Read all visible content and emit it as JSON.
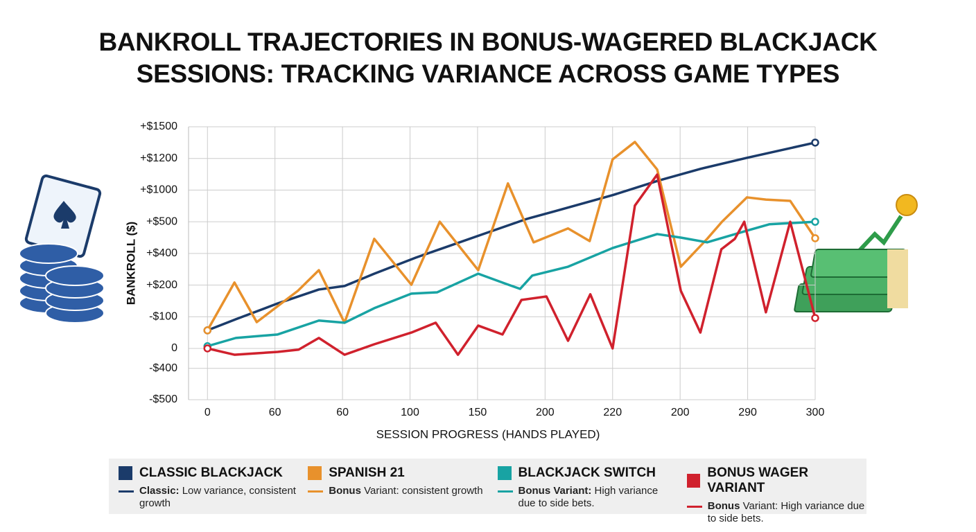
{
  "chart_data": {
    "type": "line",
    "title": "BANKROLL TRAJECTORIES IN BONUS-WAGERED BLACKJACK SESSIONS: TRACKING VARIANCE ACROSS GAME TYPES",
    "ylabel": "BANKROLL ($)",
    "xlabel": "SESSION PROGRESS (HANDS PLAYED)",
    "xlim": [
      -0.28,
      9
    ],
    "ylim": [
      -1.62,
      7
    ],
    "grid": true,
    "xticks": [
      0,
      {
        "value": 1,
        "label": "60"
      },
      {
        "value": 2,
        "label": "60"
      },
      {
        "value": 3,
        "label": "100"
      },
      {
        "value": 4,
        "label": "150"
      },
      {
        "value": 5,
        "label": "200"
      },
      {
        "value": 6,
        "label": "220"
      },
      {
        "value": 7,
        "label": "200"
      },
      {
        "value": 8,
        "label": "290"
      },
      {
        "value": 9,
        "label": "300"
      }
    ],
    "yticks": [
      {
        "value": -1.62,
        "label": "-$500"
      },
      {
        "value": -0.63,
        "label": "-$400"
      },
      0,
      {
        "value": 1,
        "label": "-$100"
      },
      {
        "value": 2,
        "label": "+$200"
      },
      {
        "value": 3,
        "label": "+$400"
      },
      {
        "value": 4,
        "label": "+$500"
      },
      {
        "value": 5,
        "label": "+$1000"
      },
      {
        "value": 6,
        "label": "+$1200"
      },
      {
        "value": 7,
        "label": "+$1500"
      }
    ],
    "series": [
      {
        "name": "CLASSIC BLACKJACK",
        "color": "#1b3b6a",
        "desc_bold": "Classic:",
        "desc": "Low variance, consistent growth",
        "x": [
          0,
          0.42,
          1.04,
          1.65,
          2.03,
          2.47,
          3.09,
          4.11,
          4.73,
          5.14,
          6.0,
          6.68,
          7.3,
          7.99,
          9.0
        ],
        "values": [
          0.57,
          0.92,
          1.42,
          1.86,
          1.97,
          2.36,
          2.87,
          3.63,
          4.09,
          4.33,
          4.84,
          5.3,
          5.67,
          6.02,
          6.5
        ]
      },
      {
        "name": "SPANISH 21",
        "color": "#e8912c",
        "desc_bold": "Bonus",
        "desc": "Variant: consistent growth",
        "x": [
          0,
          0.4,
          0.73,
          1.34,
          1.65,
          2.03,
          2.47,
          3.02,
          3.44,
          4.01,
          4.45,
          4.83,
          5.34,
          5.66,
          6.0,
          6.33,
          6.66,
          7.01,
          7.4,
          7.62,
          7.99,
          8.27,
          8.63,
          9.0
        ],
        "values": [
          0.57,
          2.08,
          0.83,
          1.82,
          2.47,
          0.81,
          3.46,
          2.01,
          4.0,
          2.47,
          5.21,
          3.35,
          3.79,
          3.39,
          5.97,
          6.52,
          5.65,
          2.58,
          3.46,
          4.0,
          4.77,
          4.7,
          4.66,
          3.48
        ]
      },
      {
        "name": "BLACKJACK SWITCH",
        "color": "#18a3a3",
        "desc_bold": "Bonus Variant:",
        "desc": "High variance due to side bets.",
        "x": [
          0,
          0.42,
          1.04,
          1.65,
          2.03,
          2.47,
          3.02,
          3.4,
          4.01,
          4.42,
          4.63,
          4.81,
          5.34,
          6.0,
          6.66,
          7.01,
          7.4,
          7.99,
          8.32,
          9.0
        ],
        "values": [
          0.07,
          0.33,
          0.44,
          0.88,
          0.81,
          1.27,
          1.73,
          1.77,
          2.36,
          2.04,
          1.88,
          2.3,
          2.58,
          3.17,
          3.61,
          3.5,
          3.35,
          3.72,
          3.92,
          4.0
        ]
      },
      {
        "name": "BONUS WAGER VARIANT",
        "color": "#d0212d",
        "desc_bold": "Bonus",
        "desc": "Variant: High variance due to side bets.",
        "x": [
          0,
          0.4,
          1.04,
          1.35,
          1.65,
          2.03,
          2.47,
          3.02,
          3.38,
          3.71,
          4.01,
          4.37,
          4.65,
          5.02,
          5.34,
          5.67,
          6.0,
          6.33,
          6.66,
          7.01,
          7.3,
          7.61,
          7.81,
          7.95,
          8.27,
          8.63,
          9.0
        ],
        "values": [
          0,
          -0.2,
          -0.11,
          -0.04,
          0.33,
          -0.2,
          0.13,
          0.5,
          0.81,
          -0.2,
          0.72,
          0.44,
          1.53,
          1.64,
          0.24,
          1.71,
          0,
          4.51,
          5.49,
          1.82,
          0.5,
          3.13,
          3.46,
          4.0,
          1.14,
          4.0,
          0.96
        ]
      }
    ]
  }
}
